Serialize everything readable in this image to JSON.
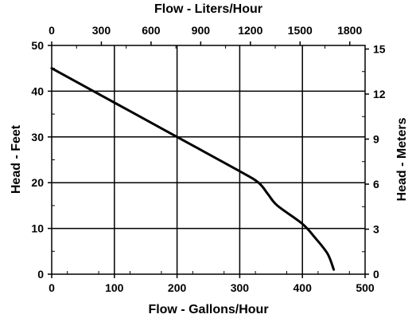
{
  "chart_data": {
    "type": "line",
    "title": "",
    "xlabel": "Flow - Gallons/Hour",
    "ylabel": "Head - Feet",
    "x2label": "Flow - Liters/Hour",
    "y2label": "Head - Meters",
    "xlim": [
      0,
      500
    ],
    "ylim": [
      0,
      50
    ],
    "x2lim": [
      0,
      1892.7
    ],
    "y2lim": [
      0,
      15.24
    ],
    "x_ticks": [
      "0",
      "100",
      "200",
      "300",
      "400",
      "500"
    ],
    "y_ticks": [
      "0",
      "10",
      "20",
      "30",
      "40",
      "50"
    ],
    "x2_ticks": [
      "0",
      "300",
      "600",
      "900",
      "1200",
      "1500",
      "1800"
    ],
    "y2_ticks": [
      "0",
      "3",
      "6",
      "9",
      "12",
      "15"
    ],
    "grid": true,
    "series": [
      {
        "x": [
          0,
          100,
          200,
          300,
          330,
          345,
          360,
          400,
          420,
          440,
          450
        ],
        "y": [
          45,
          37.5,
          30,
          22.5,
          20,
          17.5,
          15,
          11,
          8,
          4.5,
          1
        ],
        "color": "#000000"
      }
    ]
  }
}
